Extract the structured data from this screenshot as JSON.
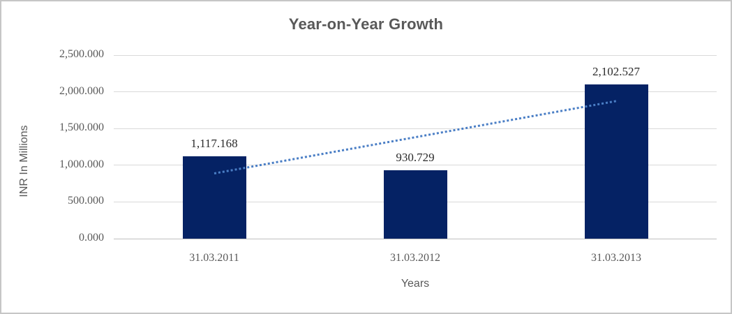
{
  "chart_data": {
    "type": "bar",
    "title": "Year-on-Year Growth",
    "xlabel": "Years",
    "ylabel": "INR In Millions",
    "categories": [
      "31.03.2011",
      "31.03.2012",
      "31.03.2013"
    ],
    "values": [
      1117.168,
      930.729,
      2102.527
    ],
    "data_labels": [
      "1,117.168",
      "930.729",
      "2,102.527"
    ],
    "ylim": [
      0,
      2500
    ],
    "yticks": [
      0,
      500,
      1000,
      1500,
      2000,
      2500
    ],
    "ytick_labels": [
      "0.000",
      "500.000",
      "1,000.000",
      "1,500.000",
      "2,000.000",
      "2,500.000"
    ],
    "grid": "horizontal",
    "legend": "none",
    "trendline": {
      "type": "linear",
      "style": "dotted"
    },
    "colors": {
      "bar": "#052264",
      "trendline": "#4a7ec5",
      "gridline": "#d9d9d9",
      "axis_text": "#595959",
      "data_label_text": "#2b2b2b",
      "title_text": "#595959",
      "frame_border": "#c6c6c6"
    }
  }
}
